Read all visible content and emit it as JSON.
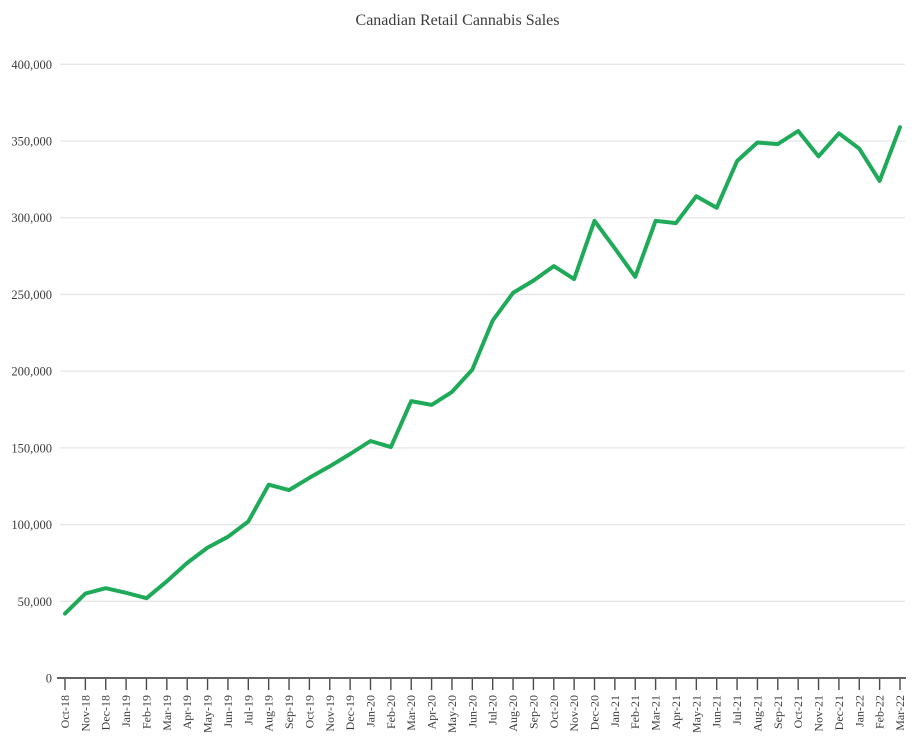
{
  "page": {
    "title": "Canadian Retail Cannabis Sales"
  },
  "chart_data": {
    "type": "line",
    "title": "Canadian Retail Cannabis Sales",
    "series_name": "retail-cannabis-sales",
    "categories": [
      "Oct-18",
      "Nov-18",
      "Dec-18",
      "Jan-19",
      "Feb-19",
      "Mar-19",
      "Apr-19",
      "May-19",
      "Jun-19",
      "Jul-19",
      "Aug-19",
      "Sep-19",
      "Oct-19",
      "Nov-19",
      "Dec-19",
      "Jan-20",
      "Feb-20",
      "Mar-20",
      "Apr-20",
      "May-20",
      "Jun-20",
      "Jul-20",
      "Aug-20",
      "Sep-20",
      "Oct-20",
      "Nov-20",
      "Dec-20",
      "Jan-21",
      "Feb-21",
      "Mar-21",
      "Apr-21",
      "May-21",
      "Jun-21",
      "Jul-21",
      "Aug-21",
      "Sep-21",
      "Oct-21",
      "Nov-21",
      "Dec-21",
      "Jan-22",
      "Feb-22",
      "Mar-22"
    ],
    "values": [
      42000,
      55000,
      58500,
      55500,
      52000,
      63000,
      75000,
      85000,
      92000,
      102000,
      126000,
      122500,
      130500,
      138000,
      146000,
      154500,
      150500,
      180500,
      178000,
      186500,
      201000,
      233000,
      251000,
      259000,
      268500,
      260000,
      298000,
      280000,
      261500,
      298000,
      296500,
      314000,
      306500,
      337000,
      349000,
      348000,
      356500,
      340000,
      355000,
      345000,
      324000,
      359000
    ],
    "xlabel": "",
    "ylabel": "",
    "ylim": [
      0,
      400000
    ],
    "yticks": [
      0,
      50000,
      100000,
      150000,
      200000,
      250000,
      300000,
      350000,
      400000
    ],
    "ytick_labels": [
      "0",
      "50,000",
      "100,000",
      "150,000",
      "200,000",
      "250,000",
      "300,000",
      "350,000",
      "400,000"
    ],
    "grid": "horizontal-only",
    "legend": "none",
    "x_label_rotation_deg": -90,
    "colors": {
      "line": "#1faa59",
      "grid": "#e5e5e5",
      "axis": "#2e2e2e",
      "tick": "#4a4a4a",
      "text": "#3b3b3b",
      "background": "#ffffff"
    }
  }
}
